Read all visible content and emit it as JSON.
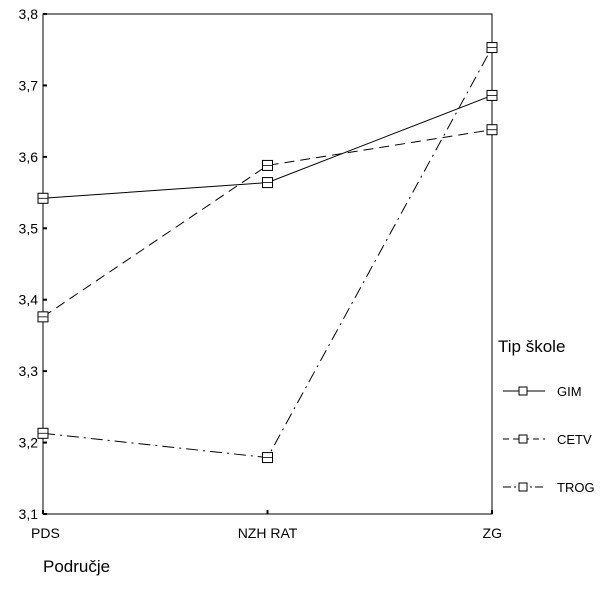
{
  "chart_data": {
    "type": "line",
    "categories": [
      "PDS",
      "NZH RAT",
      "ZG"
    ],
    "xlabel": "Područje",
    "ylim": [
      3.1,
      3.8
    ],
    "yticks": [
      3.1,
      3.2,
      3.3,
      3.4,
      3.5,
      3.6,
      3.7,
      3.8
    ],
    "ytick_labels": [
      "3,1",
      "3,2",
      "3,3",
      "3,4",
      "3,5",
      "3,6",
      "3,7",
      "3,8"
    ],
    "grid": false,
    "legend": {
      "title": "Tip škole",
      "position": "right"
    },
    "series": [
      {
        "name": "GIM",
        "values": [
          3.542,
          3.564,
          3.686
        ],
        "dash": "solid"
      },
      {
        "name": "CETV",
        "values": [
          3.376,
          3.588,
          3.638
        ],
        "dash": "dashed"
      },
      {
        "name": "TROG",
        "values": [
          3.213,
          3.179,
          3.753
        ],
        "dash": "dashdot"
      }
    ],
    "line_color": "#000000"
  }
}
